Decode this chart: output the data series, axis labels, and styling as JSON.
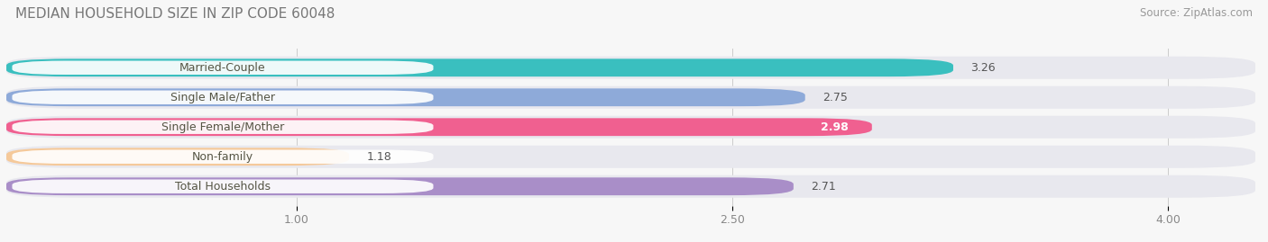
{
  "title": "MEDIAN HOUSEHOLD SIZE IN ZIP CODE 60048",
  "source": "Source: ZipAtlas.com",
  "categories": [
    "Married-Couple",
    "Single Male/Father",
    "Single Female/Mother",
    "Non-family",
    "Total Households"
  ],
  "values": [
    3.26,
    2.75,
    2.98,
    1.18,
    2.71
  ],
  "bar_colors": [
    "#3abfbf",
    "#8eaad9",
    "#f06090",
    "#f5c99a",
    "#a98ec8"
  ],
  "value_colors": [
    "#555555",
    "#555555",
    "#ffffff",
    "#555555",
    "#555555"
  ],
  "background_color": "#f7f7f7",
  "bar_bg_color": "#e8e8ee",
  "xlim": [
    0.0,
    4.3
  ],
  "xstart": 0.0,
  "xticks": [
    1.0,
    2.5,
    4.0
  ],
  "title_fontsize": 11,
  "source_fontsize": 8.5,
  "label_fontsize": 9,
  "value_fontsize": 9
}
